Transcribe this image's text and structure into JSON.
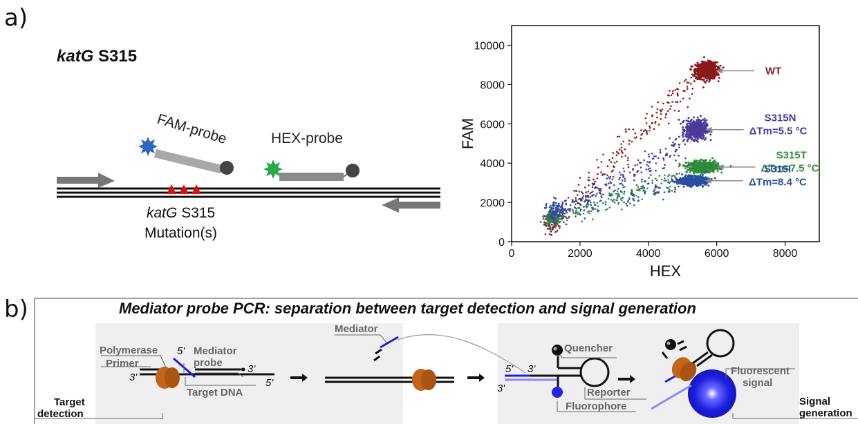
{
  "panel_a": {
    "letter": "a)",
    "gene_italic": "katG",
    "gene_site": " S315",
    "fam_probe": "FAM-probe",
    "hex_probe": "HEX-probe",
    "mutation_gene": "katG",
    "mutation_site": " S315",
    "mutation_label": "Mutation(s)"
  },
  "panel_b": {
    "letter": "b)",
    "title": "Mediator probe PCR: separation between target detection and signal generation",
    "labels": {
      "polymerase": "Polymerase",
      "primer": "Primer",
      "mediator_probe_1": "Mediator",
      "mediator_probe_2": "probe",
      "target_dna": "Target DNA",
      "mediator": "Mediator",
      "quencher": "Quencher",
      "reporter": "Reporter",
      "fluorophore": "Fluorophore",
      "fluorescent_1": "Fluorescent",
      "fluorescent_2": "signal",
      "target_detection_1": "Target",
      "target_detection_2": "detection",
      "signal_generation_1": "Signal",
      "signal_generation_2": "generation",
      "five_prime": "5'",
      "three_prime": "3'"
    },
    "colors": {
      "probe": "#1a1aee",
      "polymerase": "#c0651a",
      "box": "#efefef"
    }
  },
  "chart_data": {
    "type": "scatter",
    "xlabel": "HEX",
    "ylabel": "FAM",
    "xlim": [
      0,
      9000
    ],
    "ylim": [
      0,
      11000
    ],
    "xticks": [
      0,
      2000,
      4000,
      6000,
      8000
    ],
    "yticks": [
      0,
      2000,
      4000,
      6000,
      8000,
      10000
    ],
    "series": [
      {
        "name": "WT",
        "color": "#8b1a1a",
        "cluster": [
          5700,
          8700
        ],
        "spread": [
          260,
          350
        ],
        "origin": [
          1200,
          1000
        ],
        "trail_end": [
          5300,
          8100
        ],
        "n": 700,
        "trail_n": 180
      },
      {
        "name": "S315N",
        "color": "#4b3a9a",
        "cluster": [
          5400,
          5700
        ],
        "spread": [
          250,
          400
        ],
        "origin": [
          1200,
          1300
        ],
        "trail_end": [
          5000,
          5000
        ],
        "n": 550,
        "trail_n": 180
      },
      {
        "name": "S315T",
        "color": "#2e8b3a",
        "cluster": [
          5600,
          3800
        ],
        "spread": [
          380,
          230
        ],
        "origin": [
          1200,
          1200
        ],
        "trail_end": [
          5000,
          3300
        ],
        "n": 550,
        "trail_n": 150
      },
      {
        "name": "S315I",
        "color": "#2a4fa0",
        "cluster": [
          5300,
          3100
        ],
        "spread": [
          330,
          180
        ],
        "origin": [
          1300,
          1600
        ],
        "trail_end": [
          4800,
          2900
        ],
        "n": 600,
        "trail_n": 120
      }
    ],
    "annotations": [
      {
        "lines": [
          "WT"
        ],
        "color": "#8b1a1a",
        "series": "WT"
      },
      {
        "lines": [
          "S315N",
          "ΔTm=5.5 °C"
        ],
        "color": "#4b3a9a",
        "series": "S315N"
      },
      {
        "lines": [
          "S315T",
          "ΔTm=7.5 °C"
        ],
        "color": "#2e8b3a",
        "series": "S315T"
      },
      {
        "lines": [
          "S315I",
          "ΔTm=8.4 °C"
        ],
        "color": "#2a4fa0",
        "series": "S315I"
      }
    ]
  }
}
